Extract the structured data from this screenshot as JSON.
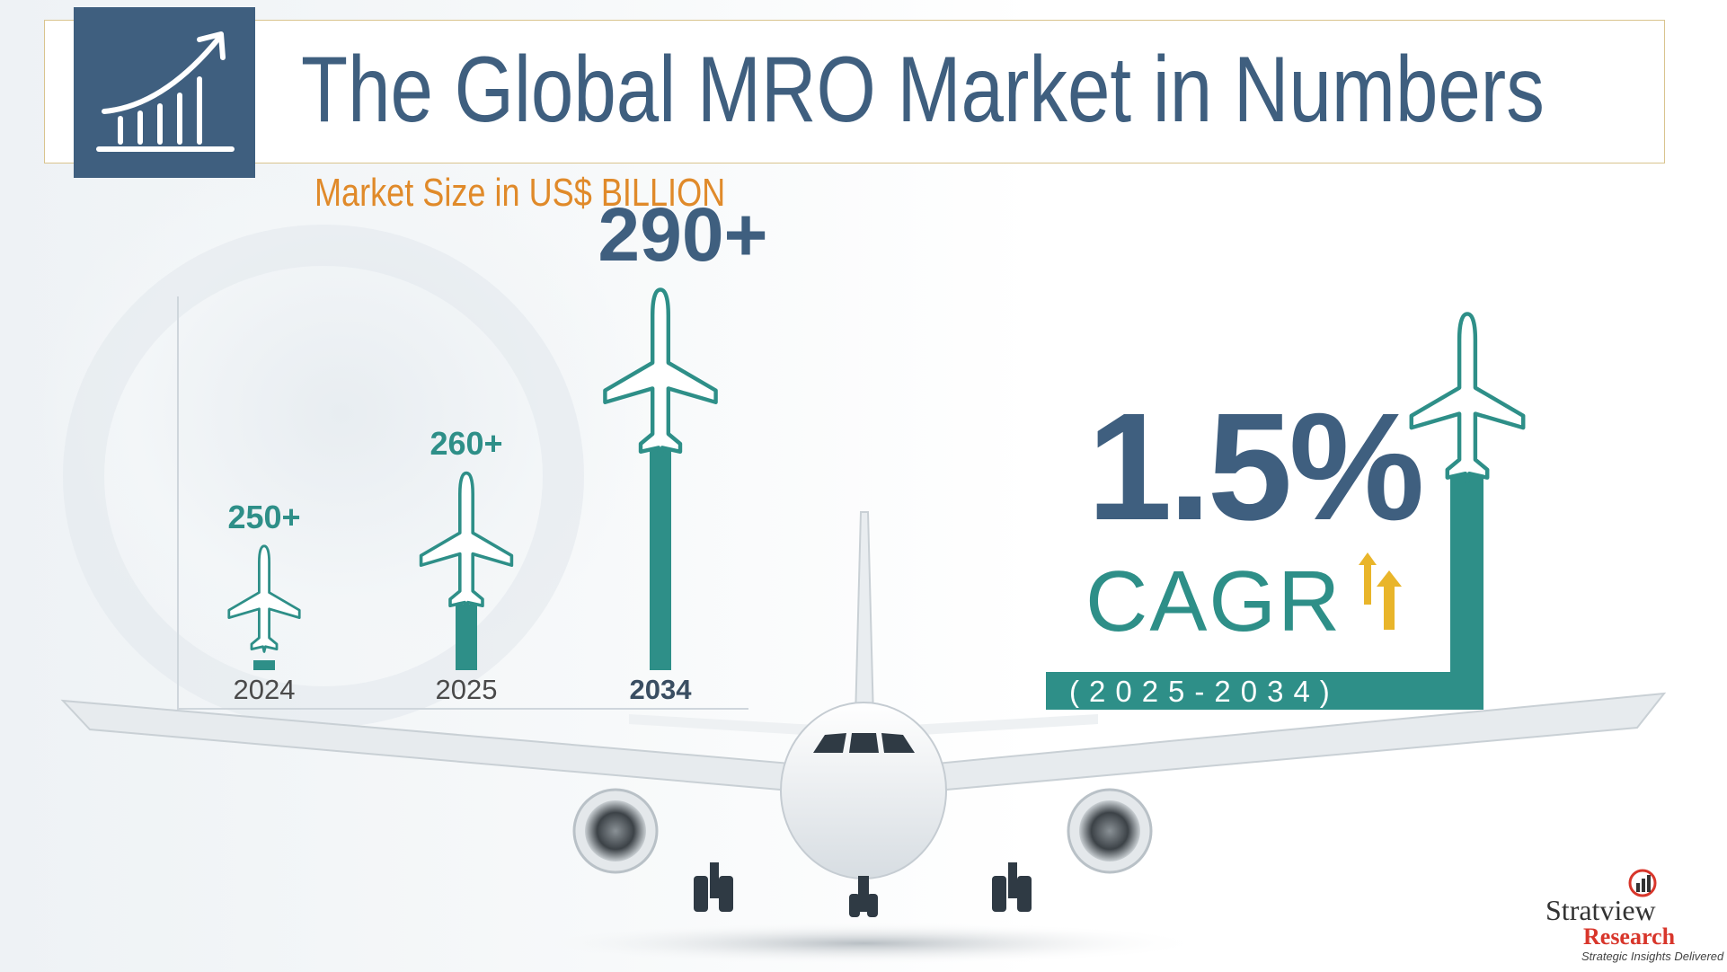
{
  "header": {
    "title": "The Global MRO Market in Numbers",
    "subtitle": "Market Size in US$ BILLION"
  },
  "chart_data": {
    "type": "bar",
    "categories": [
      "2024",
      "2025",
      "2034"
    ],
    "values": [
      250,
      260,
      290
    ],
    "value_labels": [
      "250+",
      "260+",
      "290+"
    ],
    "title": "The Global MRO Market in Numbers",
    "ylabel": "Market Size in US$ BILLION",
    "xlabel": "",
    "grid": false
  },
  "cagr": {
    "value": "1.5%",
    "label": "CAGR",
    "range": "(2025-2034)"
  },
  "logo": {
    "name": "Stratview",
    "sub": "Research",
    "tagline": "Strategic Insights Delivered"
  },
  "colors": {
    "navy": "#3f5f7f",
    "teal": "#2e8f88",
    "orange": "#e08a2a",
    "gold": "#e9b52a"
  }
}
